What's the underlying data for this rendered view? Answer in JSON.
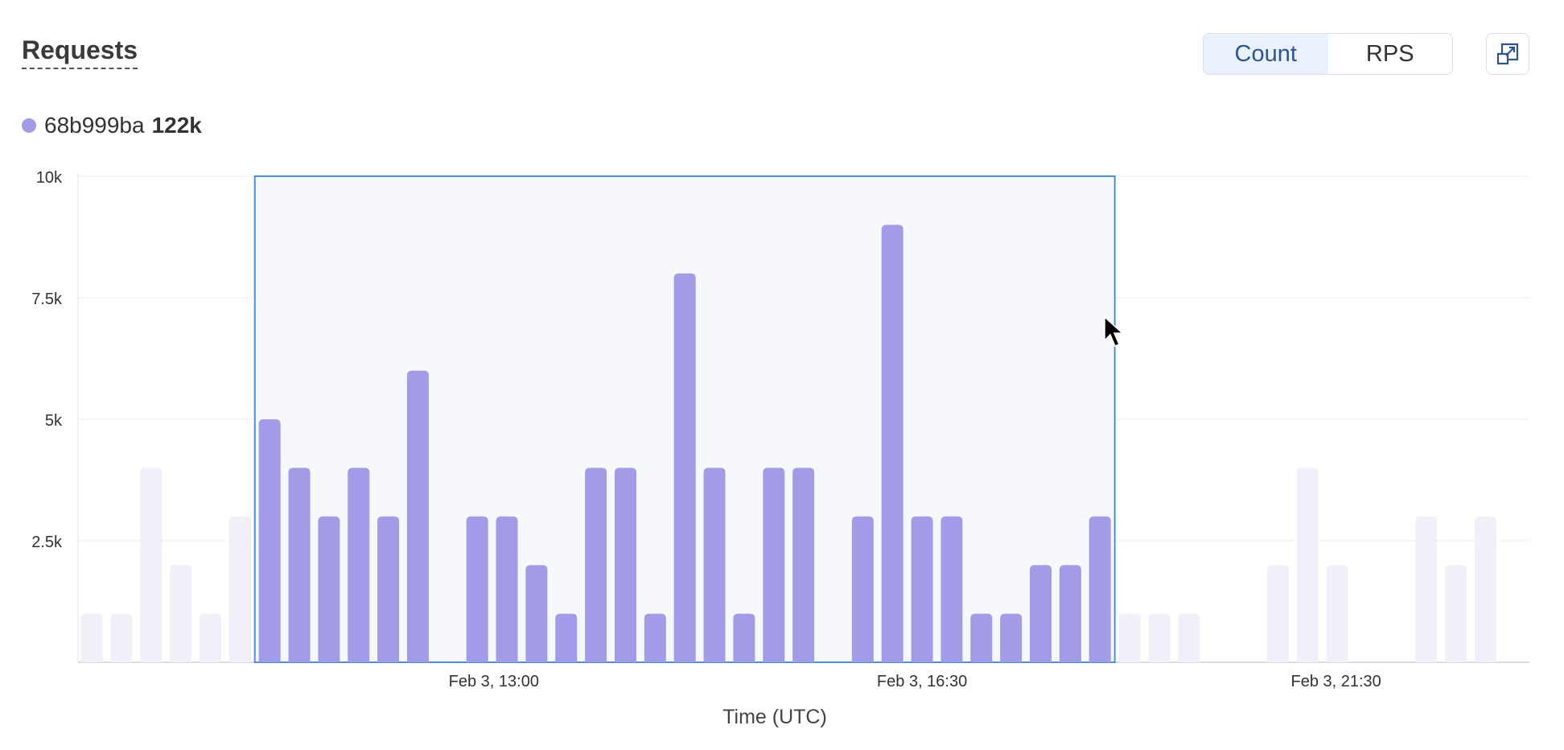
{
  "header": {
    "title": "Requests"
  },
  "toggle": {
    "count_label": "Count",
    "rps_label": "RPS",
    "selected": "Count"
  },
  "expand_icon": "expand-icon",
  "legend": {
    "series_name": "68b999ba",
    "total": "122k"
  },
  "colors": {
    "series": "#a29be8",
    "faded": "#f1f0f8",
    "selection_border": "#4a90e2",
    "selection_fill": "#f7f8fc",
    "active_toggle_bg": "#e8f1fc",
    "active_toggle_text": "#2a5599"
  },
  "chart_data": {
    "type": "bar",
    "xlabel": "Time (UTC)",
    "ylabel": "",
    "ylim": [
      0,
      10000
    ],
    "y_ticks": [
      "2.5k",
      "5k",
      "7.5k",
      "10k"
    ],
    "y_tick_values": [
      2500,
      5000,
      7500,
      10000
    ],
    "x_tick_labels": [
      "Feb 3, 13:00",
      "Feb 3, 16:30",
      "Feb 3, 21:30"
    ],
    "grid": true,
    "series": [
      {
        "name": "68b999ba",
        "values": [
          1000,
          1000,
          4000,
          2000,
          1000,
          3000,
          5000,
          4000,
          3000,
          4000,
          3000,
          6000,
          0,
          3000,
          3000,
          2000,
          1000,
          4000,
          4000,
          1000,
          8000,
          4000,
          1000,
          4000,
          4000,
          0,
          3000,
          9000,
          3000,
          3000,
          1000,
          1000,
          2000,
          2000,
          3000,
          1000,
          1000,
          1000,
          0,
          0,
          2000,
          4000,
          2000,
          0,
          0,
          3000,
          2000,
          3000
        ]
      }
    ],
    "selected_range": {
      "first_bar": 6,
      "last_bar": 34
    }
  }
}
